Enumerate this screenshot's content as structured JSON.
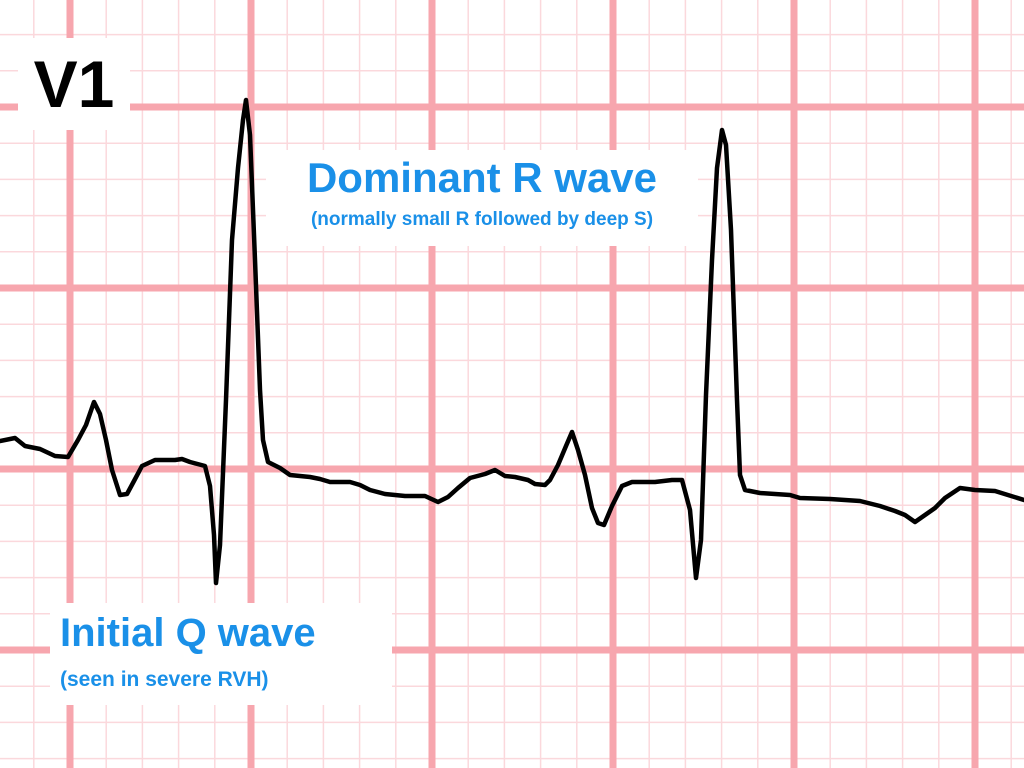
{
  "lead": "V1",
  "annotations": {
    "r_wave": {
      "title": "Dominant R wave",
      "subtitle": "(normally small R followed by deep S)"
    },
    "q_wave": {
      "title": "Initial Q wave",
      "subtitle": "(seen in severe RVH)"
    }
  },
  "colors": {
    "grid_major": "#f7a6ae",
    "grid_minor": "#fbd8dc",
    "trace": "#000000",
    "annotation": "#1a90e8"
  }
}
